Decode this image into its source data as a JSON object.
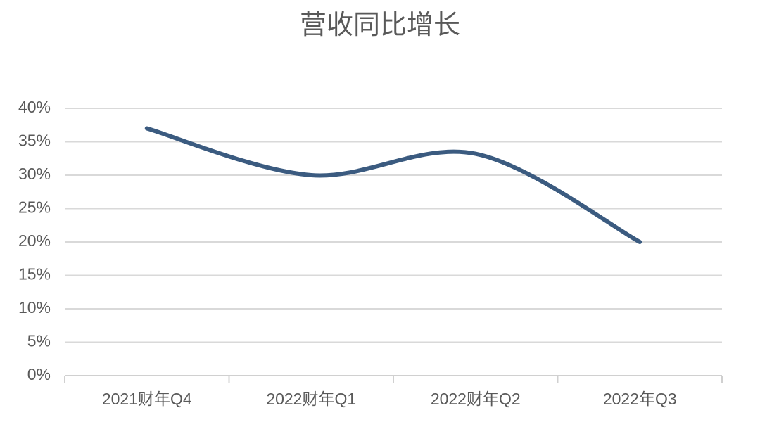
{
  "chart_data": {
    "type": "line",
    "title": "营收同比增长",
    "categories": [
      "2021财年Q4",
      "2022财年Q1",
      "2022财年Q2",
      "2022年Q3"
    ],
    "series": [
      {
        "name": "营收同比增长",
        "color": "#3b5b80",
        "values": [
          37,
          30,
          33.2,
          20
        ]
      }
    ],
    "ylim": [
      0,
      40
    ],
    "yticks": [
      {
        "value": 0,
        "label": "0%"
      },
      {
        "value": 5,
        "label": "5%"
      },
      {
        "value": 10,
        "label": "10%"
      },
      {
        "value": 15,
        "label": "15%"
      },
      {
        "value": 20,
        "label": "20%"
      },
      {
        "value": 25,
        "label": "25%"
      },
      {
        "value": 30,
        "label": "30%"
      },
      {
        "value": 35,
        "label": "35%"
      },
      {
        "value": 40,
        "label": "40%"
      }
    ],
    "grid": true,
    "smooth": true
  }
}
